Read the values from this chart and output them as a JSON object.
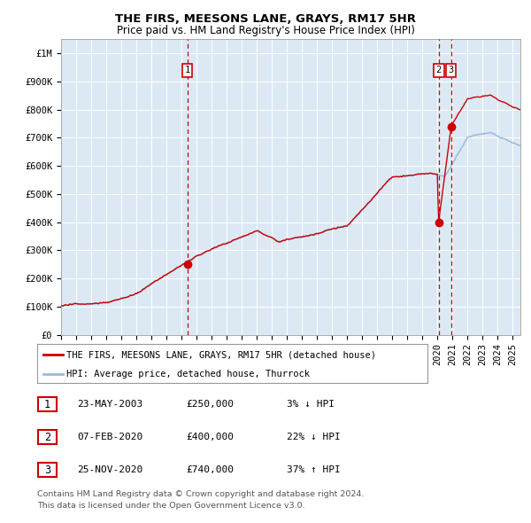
{
  "title": "THE FIRS, MEESONS LANE, GRAYS, RM17 5HR",
  "subtitle": "Price paid vs. HM Land Registry's House Price Index (HPI)",
  "ylim": [
    0,
    1050000
  ],
  "yticks": [
    0,
    100000,
    200000,
    300000,
    400000,
    500000,
    600000,
    700000,
    800000,
    900000,
    1000000
  ],
  "ytick_labels": [
    "£0",
    "£100K",
    "£200K",
    "£300K",
    "£400K",
    "£500K",
    "£600K",
    "£700K",
    "£800K",
    "£900K",
    "£1M"
  ],
  "bg_color": "#dce9f5",
  "grid_color": "#ffffff",
  "red_line_color": "#cc0000",
  "blue_line_color": "#99bbdd",
  "marker_color": "#cc0000",
  "dashed_line_color": "#cc0000",
  "transaction1_date": 2003.38,
  "transaction1_price": 250000,
  "transaction2_date": 2020.08,
  "transaction2_price": 400000,
  "transaction3_date": 2020.9,
  "transaction3_price": 740000,
  "legend_label_red": "THE FIRS, MEESONS LANE, GRAYS, RM17 5HR (detached house)",
  "legend_label_blue": "HPI: Average price, detached house, Thurrock",
  "table_rows": [
    [
      "1",
      "23-MAY-2003",
      "£250,000",
      "3% ↓ HPI"
    ],
    [
      "2",
      "07-FEB-2020",
      "£400,000",
      "22% ↓ HPI"
    ],
    [
      "3",
      "25-NOV-2020",
      "£740,000",
      "37% ↑ HPI"
    ]
  ],
  "footnote1": "Contains HM Land Registry data © Crown copyright and database right 2024.",
  "footnote2": "This data is licensed under the Open Government Licence v3.0.",
  "xlim_start": 1995.0,
  "xlim_end": 2025.5
}
